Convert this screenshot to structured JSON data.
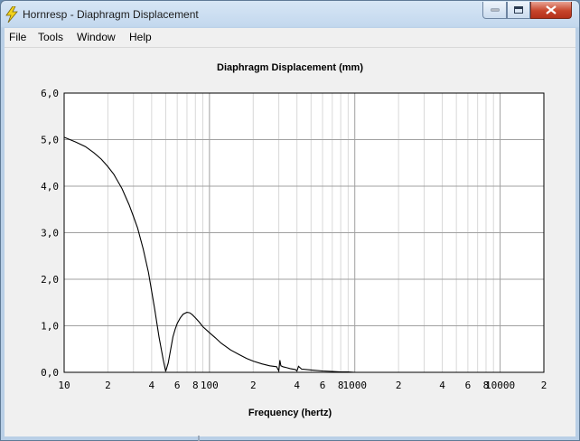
{
  "window": {
    "title": "Hornresp - Diaphragm Displacement"
  },
  "menu": [
    "File",
    "Tools",
    "Window",
    "Help"
  ],
  "colors": {
    "plot_line": "#000000",
    "grid_major": "#a0a0a0",
    "grid_minor": "#d8d8d8",
    "close_button": "#c7452b"
  },
  "chart_data": {
    "type": "line",
    "title": "Diaphragm Displacement (mm)",
    "xlabel": "Frequency (hertz)",
    "ylabel": "",
    "x_scale": "log",
    "xlim": [
      10,
      20000
    ],
    "ylim": [
      0,
      6
    ],
    "grid": true,
    "y_ticks": [
      "0,0",
      "1,0",
      "2,0",
      "3,0",
      "4,0",
      "5,0",
      "6,0"
    ],
    "x_ticks": [
      {
        "value": 10,
        "label": "10"
      },
      {
        "value": 20,
        "label": "2"
      },
      {
        "value": 40,
        "label": "4"
      },
      {
        "value": 60,
        "label": "6"
      },
      {
        "value": 80,
        "label": "8"
      },
      {
        "value": 100,
        "label": "100"
      },
      {
        "value": 200,
        "label": "2"
      },
      {
        "value": 400,
        "label": "4"
      },
      {
        "value": 600,
        "label": "6"
      },
      {
        "value": 800,
        "label": "8"
      },
      {
        "value": 1000,
        "label": "1000"
      },
      {
        "value": 2000,
        "label": "2"
      },
      {
        "value": 4000,
        "label": "4"
      },
      {
        "value": 6000,
        "label": "6"
      },
      {
        "value": 8000,
        "label": "8"
      },
      {
        "value": 10000,
        "label": "10000"
      },
      {
        "value": 20000,
        "label": "2"
      }
    ],
    "series": [
      {
        "x": [
          10,
          12,
          14,
          16,
          18,
          20,
          22,
          25,
          28,
          30,
          32,
          35,
          38,
          40,
          42,
          45,
          48,
          50,
          52,
          54,
          55,
          56,
          58,
          60,
          63,
          66,
          70,
          73,
          76,
          80,
          85,
          90,
          100,
          110,
          120,
          140,
          160,
          180,
          200,
          230,
          260,
          290,
          300,
          305,
          310,
          320,
          340,
          360,
          390,
          400,
          410,
          430,
          500,
          600,
          700,
          800,
          900,
          1000,
          1050,
          1100
        ],
        "y": [
          5.05,
          4.95,
          4.85,
          4.72,
          4.58,
          4.42,
          4.25,
          3.95,
          3.6,
          3.35,
          3.1,
          2.65,
          2.15,
          1.75,
          1.35,
          0.75,
          0.28,
          0.02,
          0.2,
          0.48,
          0.62,
          0.76,
          0.92,
          1.05,
          1.17,
          1.25,
          1.29,
          1.28,
          1.24,
          1.17,
          1.08,
          0.98,
          0.85,
          0.74,
          0.63,
          0.48,
          0.38,
          0.3,
          0.24,
          0.18,
          0.14,
          0.12,
          0.03,
          0.26,
          0.14,
          0.12,
          0.1,
          0.08,
          0.06,
          0.03,
          0.13,
          0.07,
          0.05,
          0.03,
          0.02,
          0.01,
          0.01,
          0.0,
          0.0,
          0.0
        ]
      }
    ]
  }
}
